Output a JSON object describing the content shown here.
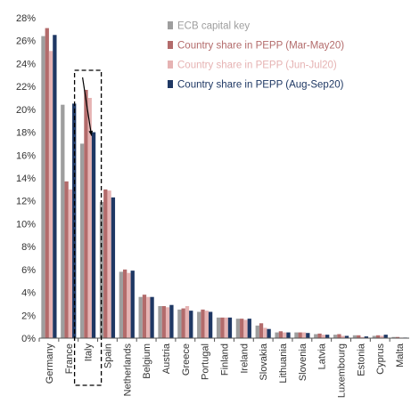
{
  "chart_data": {
    "type": "bar",
    "title": "",
    "xlabel": "",
    "ylabel": "",
    "ylim": [
      0,
      28
    ],
    "yticks": [
      0,
      2,
      4,
      6,
      8,
      10,
      12,
      14,
      16,
      18,
      20,
      22,
      24,
      26,
      28
    ],
    "ytick_format": "percent",
    "grid": false,
    "legend_position": "top-right",
    "categories": [
      "Germany",
      "France",
      "Italy",
      "Spain",
      "Netherlands",
      "Belgium",
      "Austria",
      "Greece",
      "Portugal",
      "Finland",
      "Ireland",
      "Slovakia",
      "Lithuania",
      "Slovenia",
      "Latvia",
      "Luxembourg",
      "Estonia",
      "Cyprus",
      "Malta"
    ],
    "series": [
      {
        "name": "ECB capital key",
        "color": "#9e9e9e",
        "values": [
          26.4,
          20.4,
          17.0,
          11.9,
          5.8,
          3.6,
          2.8,
          2.5,
          2.3,
          1.8,
          1.7,
          1.1,
          0.5,
          0.5,
          0.35,
          0.3,
          0.25,
          0.2,
          0.1
        ]
      },
      {
        "name": "Country share in PEPP (Mar-May20)",
        "color": "#b36b6b",
        "values": [
          27.1,
          13.7,
          21.7,
          13.0,
          6.0,
          3.8,
          2.8,
          2.6,
          2.5,
          1.8,
          1.7,
          1.3,
          0.6,
          0.5,
          0.4,
          0.35,
          0.25,
          0.25,
          0.1
        ]
      },
      {
        "name": "Country share in PEPP (Jun-Jul20)",
        "color": "#e6b3b3",
        "values": [
          25.1,
          13.0,
          21.0,
          12.9,
          5.7,
          3.6,
          2.7,
          2.8,
          2.4,
          1.8,
          1.6,
          0.9,
          0.5,
          0.5,
          0.3,
          0.2,
          0.1,
          0.2,
          0.05
        ]
      },
      {
        "name": "Country share in PEPP (Aug-Sep20)",
        "color": "#1f3864",
        "values": [
          26.5,
          20.5,
          18.0,
          12.3,
          5.9,
          3.6,
          2.9,
          2.4,
          2.3,
          1.8,
          1.7,
          0.8,
          0.5,
          0.45,
          0.3,
          0.2,
          0.15,
          0.3,
          0.05
        ]
      }
    ],
    "annotations": [
      {
        "type": "dashed-box",
        "around_category": "Italy"
      },
      {
        "type": "arrow",
        "from_value": 21.7,
        "to_value": 18.0,
        "category": "Italy"
      }
    ]
  }
}
